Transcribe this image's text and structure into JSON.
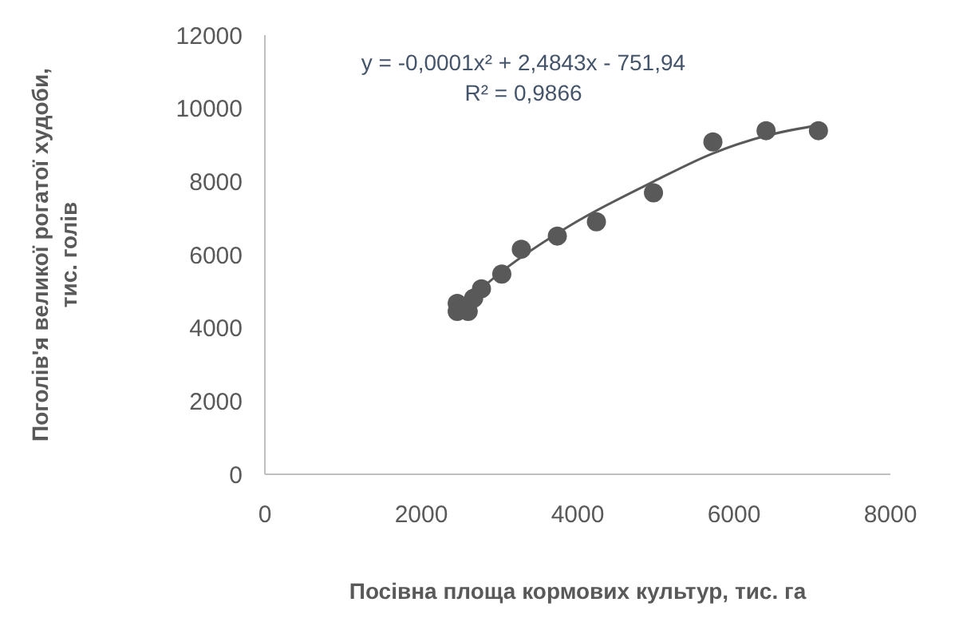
{
  "chart_data": {
    "type": "scatter",
    "xlabel": "Посівна площа кормових культур, тис. га",
    "ylabel": "Поголів'я великої рогатої худоби,\nтис. голів",
    "xlim": [
      0,
      8000
    ],
    "xticks": [
      0,
      2000,
      4000,
      6000,
      8000
    ],
    "ylim": [
      0,
      12000
    ],
    "yticks": [
      0,
      2000,
      4000,
      6000,
      8000,
      10000,
      12000
    ],
    "grid": false,
    "marker": "circle",
    "series": [
      {
        "color": "#595959",
        "x": [
          2460,
          2460,
          2600,
          2670,
          2770,
          3030,
          3280,
          3740,
          4240,
          4970,
          5730,
          6410,
          7080
        ],
        "values": [
          4670,
          4450,
          4450,
          4810,
          5070,
          5470,
          6150,
          6510,
          6900,
          7690,
          9080,
          9390,
          9390
        ]
      },
      {
        "type": "line",
        "color": "#595959",
        "marker": "none",
        "x": [
          2460,
          3030,
          3890,
          4980,
          5730,
          6410,
          7080
        ],
        "values": [
          4500,
          5540,
          6780,
          8010,
          8770,
          9250,
          9540
        ]
      }
    ],
    "annotations": [
      "y = -0,0001x² + 2,4843x - 751,94",
      "R² = 0,9866"
    ]
  }
}
